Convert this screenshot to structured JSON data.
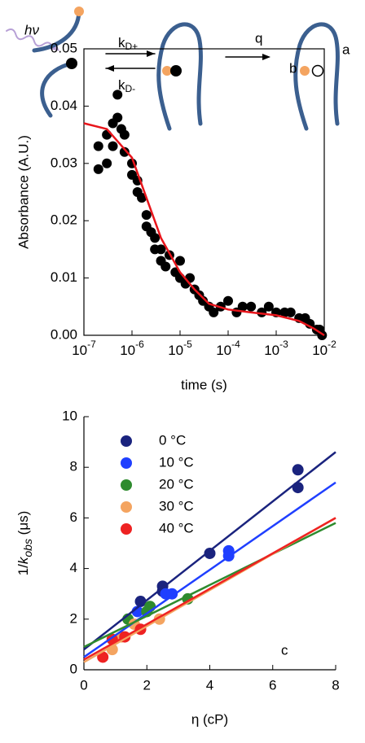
{
  "diagram": {
    "photon": "hν",
    "rate_forward": [
      "k",
      "D+"
    ],
    "rate_backward": [
      "k",
      "D-"
    ],
    "quench": "q",
    "panel_label": "a"
  },
  "chart_data": [
    {
      "type": "scatter",
      "panel_label": "b",
      "x_label": "time (s)",
      "y_label": "Absorbance (A.U.)",
      "log_x": true,
      "xlim": [
        1e-07,
        0.01
      ],
      "ylim": [
        0,
        0.05
      ],
      "xticks": [
        {
          "value": 1e-07,
          "label": "10-7"
        },
        {
          "value": 1e-06,
          "label": "10-6"
        },
        {
          "value": 1e-05,
          "label": "10-5"
        },
        {
          "value": 0.0001,
          "label": "10-4"
        },
        {
          "value": 0.001,
          "label": "10-3"
        },
        {
          "value": 0.01,
          "label": "10-2"
        }
      ],
      "yticks": [
        {
          "value": 0,
          "label": "0.00"
        },
        0.01,
        0.02,
        0.03,
        0.04,
        0.05
      ],
      "series": [
        {
          "mode": "markers",
          "color": "#000000",
          "x": [
            2e-07,
            2e-07,
            3e-07,
            3e-07,
            4e-07,
            4e-07,
            5e-07,
            5e-07,
            6e-07,
            7e-07,
            7e-07,
            1e-06,
            1e-06,
            1.3e-06,
            1.3e-06,
            1.6e-06,
            2e-06,
            2e-06,
            2.5e-06,
            3e-06,
            3e-06,
            4e-06,
            4e-06,
            5e-06,
            6e-06,
            8e-06,
            1e-05,
            1e-05,
            1.3e-05,
            1.6e-05,
            2e-05,
            2.5e-05,
            3e-05,
            4e-05,
            5e-05,
            7e-05,
            0.0001,
            0.00015,
            0.0002,
            0.0003,
            0.0005,
            0.0007,
            0.001,
            0.0015,
            0.002,
            0.003,
            0.004,
            0.005,
            0.007,
            0.008,
            0.009
          ],
          "values": [
            0.029,
            0.033,
            0.03,
            0.035,
            0.037,
            0.033,
            0.042,
            0.038,
            0.036,
            0.035,
            0.032,
            0.03,
            0.028,
            0.027,
            0.025,
            0.024,
            0.021,
            0.019,
            0.018,
            0.017,
            0.015,
            0.015,
            0.013,
            0.012,
            0.014,
            0.011,
            0.01,
            0.013,
            0.009,
            0.01,
            0.008,
            0.007,
            0.006,
            0.005,
            0.004,
            0.005,
            0.006,
            0.004,
            0.005,
            0.005,
            0.004,
            0.005,
            0.004,
            0.004,
            0.004,
            0.003,
            0.003,
            0.002,
            0.001,
            0.001,
            0.0
          ]
        },
        {
          "mode": "line",
          "color": "#e8151b",
          "x": [
            1e-07,
            3e-07,
            1e-06,
            2e-06,
            4e-06,
            1e-05,
            2e-05,
            4e-05,
            0.0001,
            0.0003,
            0.001,
            0.003,
            0.006,
            0.01
          ],
          "values": [
            0.037,
            0.036,
            0.031,
            0.024,
            0.017,
            0.011,
            0.008,
            0.0055,
            0.0045,
            0.004,
            0.0035,
            0.0025,
            0.0012,
            0.0
          ]
        }
      ]
    },
    {
      "type": "scatter",
      "panel_label": "c",
      "x_label": "η (cP)",
      "y_label": [
        "1/",
        "k",
        "obs",
        " (μs)"
      ],
      "log_x": false,
      "xlim": [
        0,
        8
      ],
      "ylim": [
        0,
        10
      ],
      "xticks": [
        0,
        2,
        4,
        6,
        8
      ],
      "yticks": [
        0,
        2,
        4,
        6,
        8,
        10
      ],
      "legend": "top-left",
      "series": [
        {
          "mode": "markers",
          "name": "0 °C",
          "color": "#1a237e",
          "x": [
            1.8,
            2.5,
            2.5,
            4.0,
            6.8,
            6.8
          ],
          "values": [
            2.7,
            3.3,
            3.1,
            4.6,
            7.9,
            7.2
          ]
        },
        {
          "mode": "markers",
          "name": "10 °C",
          "color": "#1f3fff",
          "x": [
            1.7,
            2.6,
            2.8,
            4.6,
            4.6
          ],
          "values": [
            2.3,
            3.0,
            3.0,
            4.7,
            4.5
          ]
        },
        {
          "mode": "markers",
          "name": "20 °C",
          "color": "#2e8b2e",
          "x": [
            1.4,
            2.0,
            2.1,
            3.3
          ],
          "values": [
            2.0,
            2.3,
            2.5,
            2.8
          ]
        },
        {
          "mode": "markers",
          "name": "30 °C",
          "color": "#f4a460",
          "x": [
            0.9,
            1.2,
            1.6,
            2.4
          ],
          "values": [
            0.8,
            1.3,
            1.8,
            2.0
          ]
        },
        {
          "mode": "markers",
          "name": "40 °C",
          "color": "#ee2222",
          "x": [
            0.6,
            0.9,
            1.3,
            1.8
          ],
          "values": [
            0.5,
            1.2,
            1.3,
            1.6
          ]
        },
        {
          "mode": "line",
          "color": "#1a237e",
          "x": [
            0,
            8
          ],
          "values": [
            0.8,
            8.6
          ]
        },
        {
          "mode": "line",
          "color": "#1f3fff",
          "x": [
            0,
            8
          ],
          "values": [
            0.5,
            7.4
          ]
        },
        {
          "mode": "line",
          "color": "#2e8b2e",
          "x": [
            0,
            8
          ],
          "values": [
            0.9,
            5.8
          ]
        },
        {
          "mode": "line",
          "color": "#f4a460",
          "x": [
            0,
            8
          ],
          "values": [
            0.3,
            6.0
          ]
        },
        {
          "mode": "line",
          "color": "#ee2222",
          "x": [
            0,
            8
          ],
          "values": [
            0.4,
            6.0
          ]
        }
      ]
    }
  ]
}
